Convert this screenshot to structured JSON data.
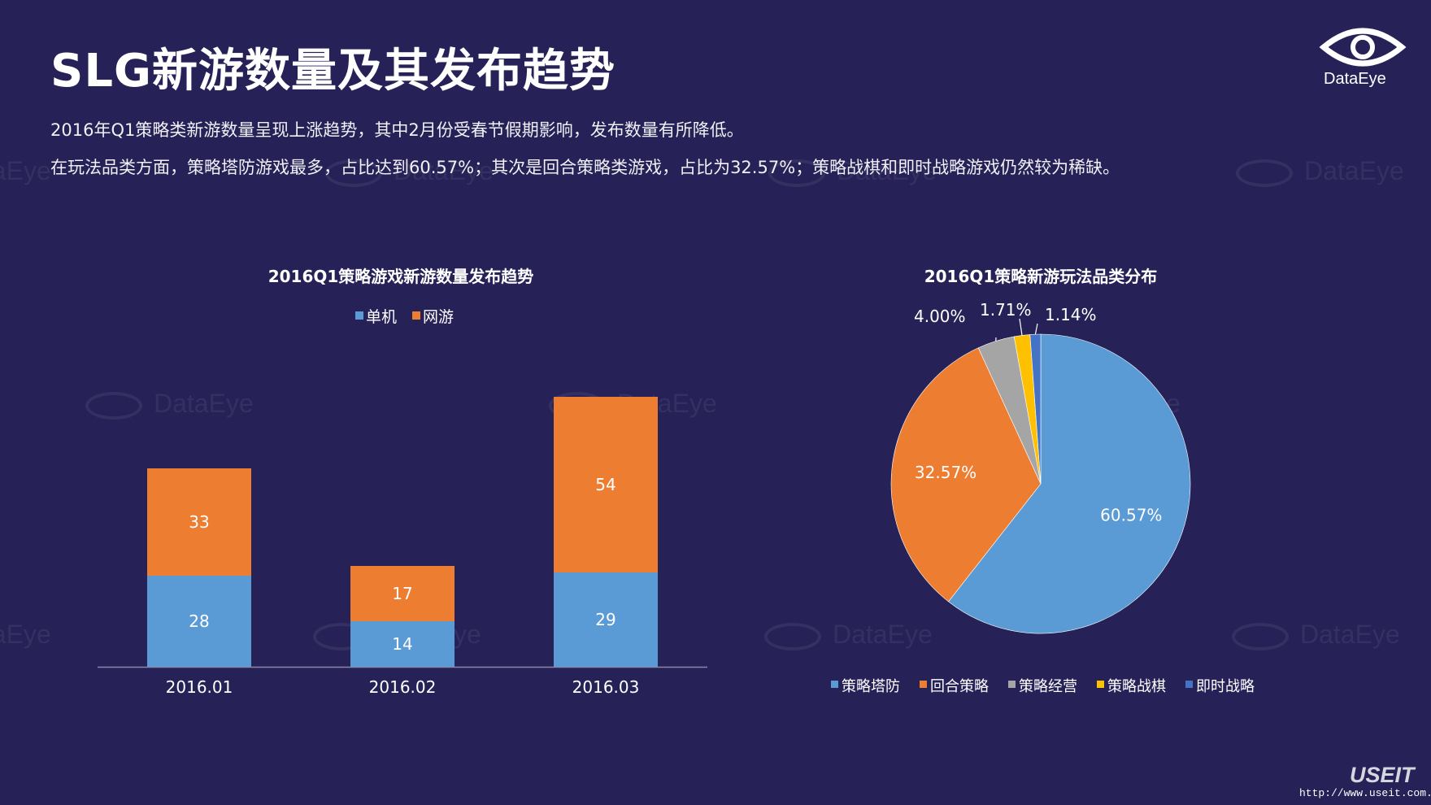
{
  "header": {
    "title": "SLG新游数量及其发布趋势",
    "desc1": "2016年Q1策略类新游数量呈现上涨趋势，其中2月份受春节假期影响，发布数量有所降低。",
    "desc2": "在玩法品类方面，策略塔防游戏最多，占比达到60.57%；其次是回合策略类游戏，占比为32.57%；策略战棋和即时战略游戏仍然较为稀缺。"
  },
  "brand": {
    "logo_text": "DataEye",
    "watermark_text": "DataEye",
    "footer_mark": "USEIT",
    "footer_url": "http://www.useit.com.cn"
  },
  "colors": {
    "background": "#262156",
    "blue": "#5B9BD5",
    "orange": "#ED7D31",
    "gray": "#A5A5A5",
    "yellow": "#FFC000",
    "darkblue": "#4472C4"
  },
  "chart_data": [
    {
      "type": "bar",
      "stacked": true,
      "title": "2016Q1策略游戏新游数量发布趋势",
      "categories": [
        "2016.01",
        "2016.02",
        "2016.03"
      ],
      "series": [
        {
          "name": "单机",
          "values": [
            28,
            14,
            29
          ],
          "color": "#5B9BD5"
        },
        {
          "name": "网游",
          "values": [
            33,
            17,
            54
          ],
          "color": "#ED7D31"
        }
      ],
      "ylim": [
        0,
        90
      ],
      "legend": "top",
      "grid": false
    },
    {
      "type": "pie",
      "title": "2016Q1策略新游玩法品类分布",
      "slices": [
        {
          "label": "策略塔防",
          "value": 60.57,
          "text": "60.57%",
          "color": "#5B9BD5"
        },
        {
          "label": "回合策略",
          "value": 32.57,
          "text": "32.57%",
          "color": "#ED7D31"
        },
        {
          "label": "策略经营",
          "value": 4.0,
          "text": "4.00%",
          "color": "#A5A5A5"
        },
        {
          "label": "策略战棋",
          "value": 1.71,
          "text": "1.71%",
          "color": "#FFC000"
        },
        {
          "label": "即时战略",
          "value": 1.14,
          "text": "1.14%",
          "color": "#4472C4"
        }
      ],
      "legend": "bottom"
    }
  ]
}
